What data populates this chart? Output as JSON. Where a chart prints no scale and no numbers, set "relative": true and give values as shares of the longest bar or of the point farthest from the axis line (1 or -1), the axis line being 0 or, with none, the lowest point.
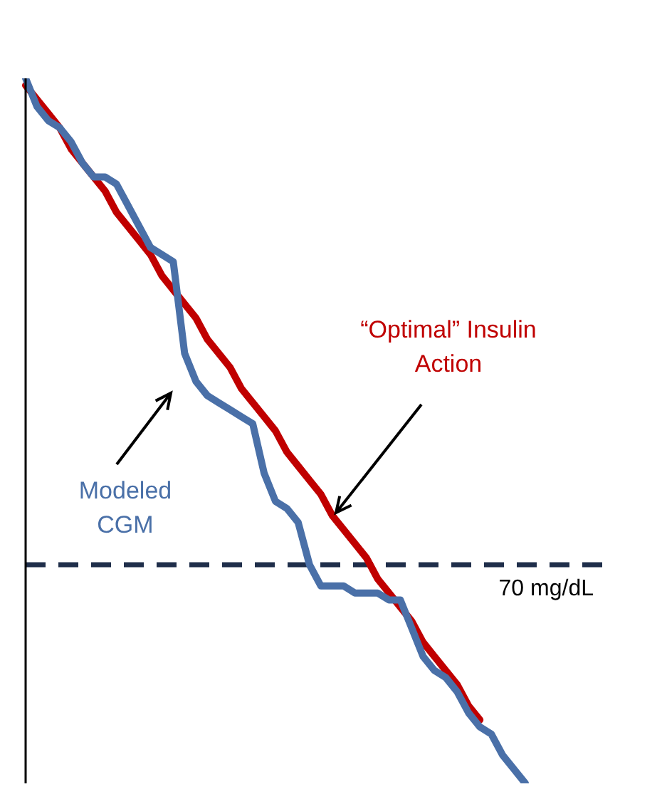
{
  "chart_data": {
    "type": "line",
    "relative": true,
    "categories": [
      null,
      null,
      null,
      null,
      null,
      null,
      null,
      null,
      null,
      null,
      null,
      null,
      null,
      null,
      null,
      null,
      null,
      null,
      null,
      null,
      null,
      null,
      null,
      null,
      null,
      null,
      null,
      null,
      null,
      null,
      null,
      null,
      null,
      null,
      null,
      null,
      null,
      null,
      null,
      null,
      null,
      null,
      null,
      null,
      null
    ],
    "series": [
      {
        "name": "“Optimal” Insulin Action",
        "color": "#c00000",
        "values": [
          0.99,
          0.97,
          0.95,
          0.93,
          0.9,
          0.88,
          0.86,
          0.84,
          0.81,
          0.79,
          0.77,
          0.75,
          0.72,
          0.7,
          0.68,
          0.66,
          0.63,
          0.61,
          0.59,
          0.56,
          0.54,
          0.52,
          0.5,
          0.47,
          0.45,
          0.43,
          0.41,
          0.38,
          0.36,
          0.34,
          0.32,
          0.29,
          0.27,
          0.25,
          0.23,
          0.2,
          0.18,
          0.16,
          0.14,
          0.11,
          0.09,
          null,
          null,
          null,
          null
        ]
      },
      {
        "name": "Modeled CGM",
        "color": "#4a70a8",
        "values": [
          1.0,
          0.96,
          0.94,
          0.93,
          0.91,
          0.88,
          0.86,
          0.86,
          0.85,
          0.82,
          0.79,
          0.76,
          0.75,
          0.74,
          0.61,
          0.57,
          0.55,
          0.54,
          0.53,
          0.52,
          0.51,
          0.44,
          0.4,
          0.39,
          0.37,
          0.31,
          0.28,
          0.28,
          0.28,
          0.27,
          0.27,
          0.27,
          0.26,
          0.26,
          0.22,
          0.18,
          0.16,
          0.15,
          0.13,
          0.1,
          0.08,
          0.07,
          0.04,
          0.02,
          0.0
        ]
      }
    ],
    "ref_lines": [
      {
        "axis": "y",
        "value": 0.31,
        "label": "70 mg/dL",
        "color": "#1f2e4a",
        "line_style": "dashed"
      }
    ]
  }
}
